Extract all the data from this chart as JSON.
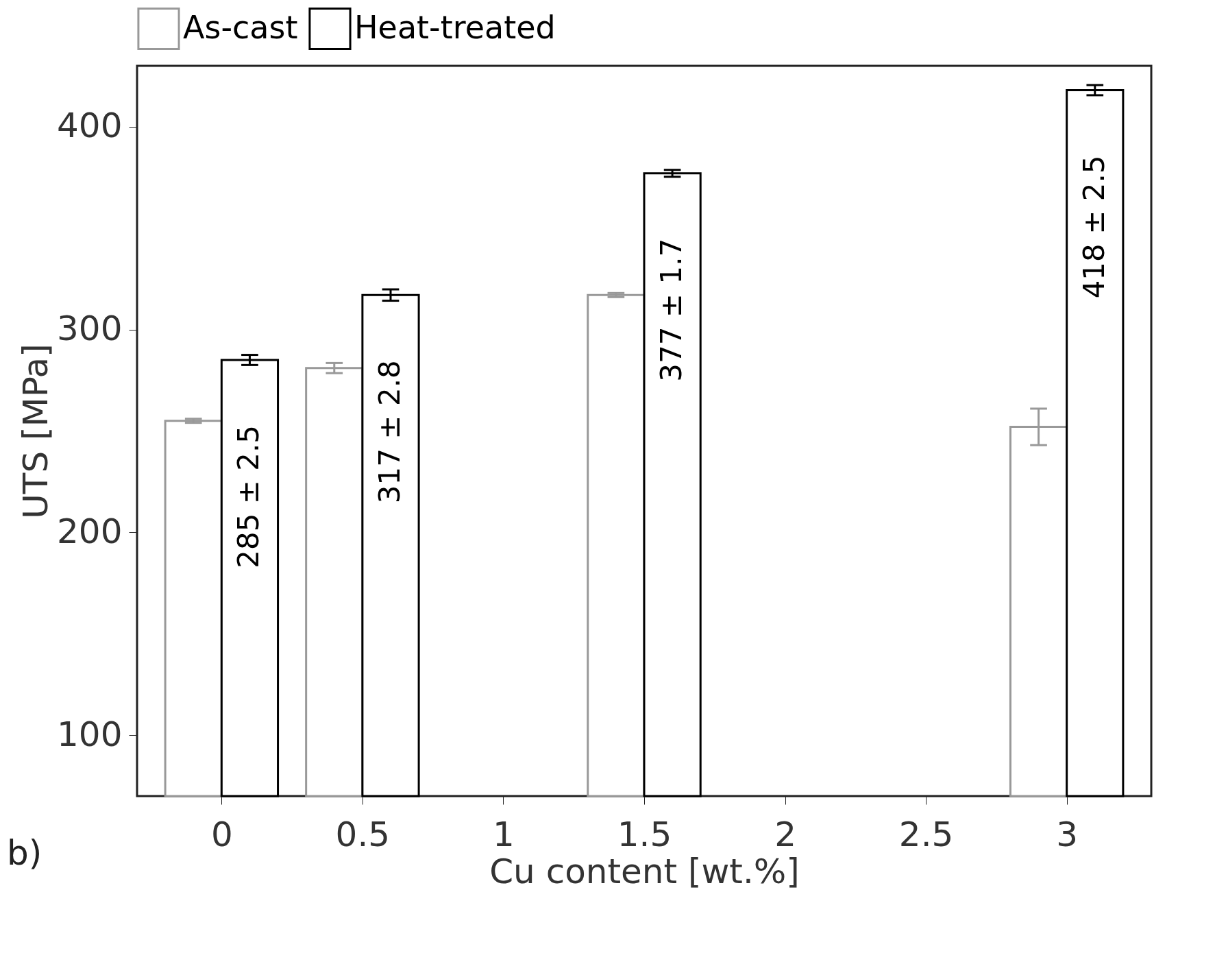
{
  "chart_data": {
    "type": "bar",
    "x": [
      0,
      0.5,
      1.5,
      3
    ],
    "xlabel": "Cu content [wt.%]",
    "ylabel": "UTS [MPa]",
    "series": [
      {
        "name": "As-cast",
        "color": "#999999",
        "values": [
          255,
          281,
          317,
          252
        ],
        "errors": [
          1,
          2.5,
          1,
          9
        ]
      },
      {
        "name": "Heat-treated",
        "color": "#000000",
        "values": [
          285,
          317,
          377,
          418
        ],
        "errors": [
          2.5,
          2.8,
          1.7,
          2.5
        ],
        "value_labels": [
          "285 ± 2.5",
          "317 ± 2.8",
          "377 ± 1.7",
          "418 ± 2.5"
        ]
      }
    ],
    "xlim": [
      -0.3,
      3.3
    ],
    "xticks": [
      0,
      0.5,
      1,
      1.5,
      2,
      2.5,
      3
    ],
    "ylim": [
      70,
      430
    ],
    "yticks": [
      100,
      200,
      300,
      400
    ],
    "grid": false,
    "legend": "top",
    "annotations": [
      "b)"
    ]
  }
}
